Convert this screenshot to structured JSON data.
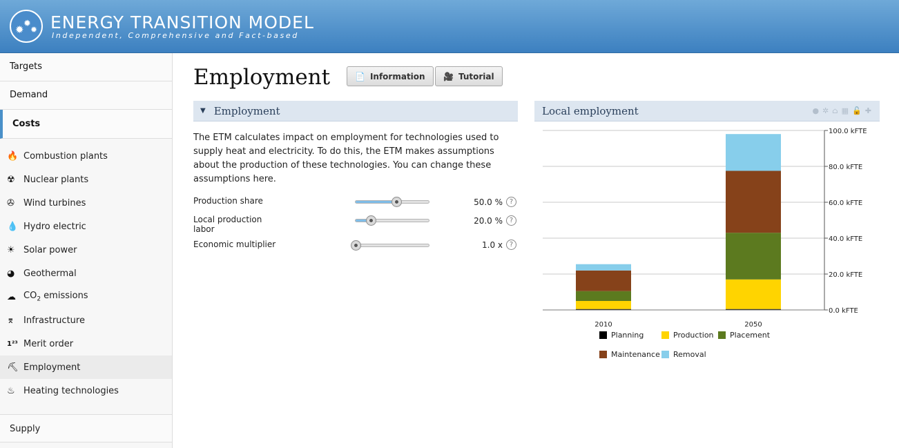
{
  "header": {
    "title": "ENERGY TRANSITION MODEL",
    "subtitle": "Independent, Comprehensive and Fact-based"
  },
  "sidebar": {
    "top_items": [
      {
        "label": "Targets"
      },
      {
        "label": "Demand"
      },
      {
        "label": "Costs"
      }
    ],
    "sub_items": [
      {
        "label": "Combustion plants",
        "icon": "flame-icon"
      },
      {
        "label": "Nuclear plants",
        "icon": "radiation-icon"
      },
      {
        "label": "Wind turbines",
        "icon": "wind-turbine-icon"
      },
      {
        "label": "Hydro electric",
        "icon": "water-drop-icon"
      },
      {
        "label": "Solar power",
        "icon": "sun-icon"
      },
      {
        "label": "Geothermal",
        "icon": "globe-icon"
      },
      {
        "label_main": "CO",
        "label_sub": "2",
        "label_tail": " emissions",
        "icon": "co2-cloud-icon"
      },
      {
        "label": "Infrastructure",
        "icon": "power-pylon-icon"
      },
      {
        "label": "Merit order",
        "icon": "merit-order-icon"
      },
      {
        "label": "Employment",
        "icon": "worker-icon"
      },
      {
        "label": "Heating technologies",
        "icon": "heat-waves-icon"
      }
    ],
    "bottom_item": "Supply"
  },
  "main": {
    "title": "Employment",
    "buttons": {
      "information": "Information",
      "tutorial": "Tutorial"
    },
    "section_title": "Employment",
    "intro": "The ETM calculates impact on employment for technologies used to supply heat and electricity. To do this, the ETM makes assumptions about the production of these technologies. You can change these assumptions here.",
    "sliders": [
      {
        "label": "Production share",
        "value": "50.0 %",
        "fraction": 0.55
      },
      {
        "label": "Local production labor",
        "value": "20.0 %",
        "fraction": 0.2
      },
      {
        "label": "Economic multiplier",
        "value": "1.0 x",
        "fraction": 0.0
      }
    ],
    "help_glyph": "?"
  },
  "chart_panel": {
    "title": "Local employment"
  },
  "chart_data": {
    "type": "bar",
    "stacked": true,
    "categories": [
      "2010",
      "2050"
    ],
    "series": [
      {
        "name": "Planning",
        "color": "#000000",
        "values": [
          0.5,
          0.5
        ]
      },
      {
        "name": "Production",
        "color": "#ffd400",
        "values": [
          4.5,
          16.5
        ]
      },
      {
        "name": "Placement",
        "color": "#5c7a1f",
        "values": [
          5.5,
          26.0
        ]
      },
      {
        "name": "Maintenance",
        "color": "#86421a",
        "values": [
          11.5,
          34.5
        ]
      },
      {
        "name": "Removal",
        "color": "#87ceeb",
        "values": [
          3.5,
          20.5
        ]
      }
    ],
    "ylim": [
      0,
      100
    ],
    "yticks": [
      "100.0 kFTE",
      "80.0 kFTE",
      "60.0 kFTE",
      "40.0 kFTE",
      "20.0 kFTE",
      "0.0 kFTE"
    ],
    "ytick_values": [
      100,
      80,
      60,
      40,
      20,
      0
    ],
    "grid": true,
    "legend_position": "bottom"
  }
}
